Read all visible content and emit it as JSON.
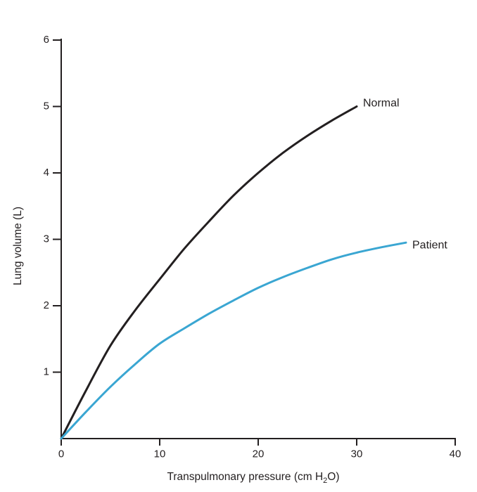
{
  "figure": {
    "ylabel": "Lung volume (L)",
    "xlabel_pre": "Transpulmonary pressure (cm H",
    "xlabel_sub": "2",
    "xlabel_post": "O)"
  },
  "chart_data": {
    "type": "line",
    "title": "",
    "xlabel": "Transpulmonary pressure (cm H2O)",
    "ylabel": "Lung volume (L)",
    "xlim": [
      0,
      40
    ],
    "ylim": [
      0,
      6
    ],
    "x_ticks": [
      0,
      10,
      20,
      30,
      40
    ],
    "y_ticks": [
      1,
      2,
      3,
      4,
      5,
      6
    ],
    "grid": false,
    "legend_position": "labels-at-line-ends",
    "background_color": "#ffffff",
    "axis_color": "#231f20",
    "series": [
      {
        "name": "Normal",
        "color": "#231f20",
        "x": [
          0,
          2.5,
          5,
          7.5,
          10,
          12.5,
          15,
          17.5,
          20,
          22.5,
          25,
          27.5,
          30
        ],
        "y": [
          0,
          0.72,
          1.4,
          1.93,
          2.4,
          2.86,
          3.27,
          3.66,
          4.0,
          4.3,
          4.56,
          4.79,
          5.0
        ]
      },
      {
        "name": "Patient",
        "color": "#3aa6d2",
        "x": [
          0,
          2.5,
          5,
          7.5,
          10,
          12.5,
          15,
          17.5,
          20,
          22.5,
          25,
          27.5,
          30,
          32.5,
          35
        ],
        "y": [
          0,
          0.4,
          0.78,
          1.12,
          1.43,
          1.66,
          1.88,
          2.08,
          2.27,
          2.43,
          2.57,
          2.7,
          2.8,
          2.88,
          2.95
        ]
      }
    ]
  }
}
